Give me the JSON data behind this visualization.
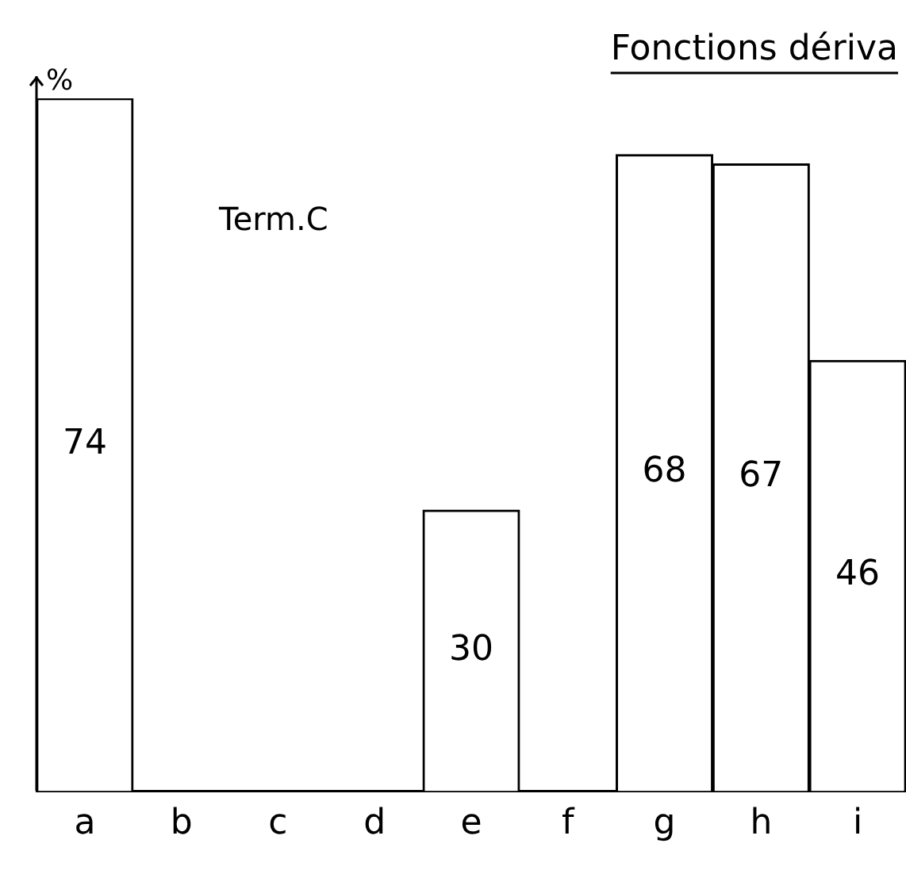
{
  "chart_data": {
    "type": "bar",
    "title": "Fonctions dériva",
    "ylabel": "%",
    "annotations": [
      "Term.C"
    ],
    "categories": [
      "a",
      "b",
      "c",
      "d",
      "e",
      "f",
      "g",
      "h",
      "i"
    ],
    "values": [
      74,
      0,
      0,
      0,
      30,
      0,
      68,
      67,
      46
    ],
    "value_labels": [
      "74",
      null,
      null,
      null,
      "30",
      null,
      "68",
      "67",
      "46"
    ],
    "color": "#ffffff",
    "grid": false,
    "legend": false
  }
}
